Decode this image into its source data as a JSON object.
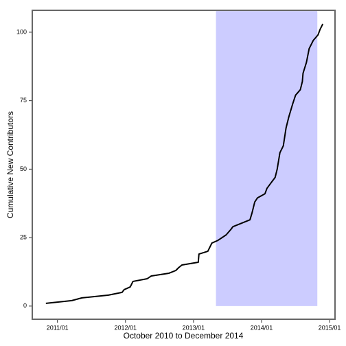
{
  "chart_data": {
    "type": "line",
    "xlabel": "October 2010 to December 2014",
    "ylabel": "Cumulative New Contributors",
    "x": [
      2010.83,
      2011.21,
      2011.36,
      2011.75,
      2011.95,
      2011.98,
      2012.07,
      2012.11,
      2012.32,
      2012.38,
      2012.64,
      2012.74,
      2012.78,
      2012.83,
      2013.07,
      2013.08,
      2013.21,
      2013.27,
      2013.36,
      2013.48,
      2013.55,
      2013.58,
      2013.83,
      2013.86,
      2013.9,
      2013.94,
      2014.05,
      2014.08,
      2014.14,
      2014.2,
      2014.23,
      2014.27,
      2014.32,
      2014.36,
      2014.4,
      2014.46,
      2014.5,
      2014.57,
      2014.6,
      2014.61,
      2014.66,
      2014.7,
      2014.76,
      2014.83,
      2014.86,
      2014.9
    ],
    "series": [
      {
        "color": "#000000",
        "values": [
          1,
          2,
          3,
          4,
          5,
          6,
          7,
          9,
          10,
          11,
          12,
          13,
          14,
          15,
          16,
          19,
          20,
          23,
          24,
          26,
          28,
          29,
          31.5,
          34,
          38,
          39.5,
          41,
          43,
          45,
          47,
          50,
          56,
          58.5,
          65,
          69,
          74,
          77,
          79,
          82,
          85,
          89,
          94,
          97,
          99,
          101,
          103
        ]
      }
    ],
    "shaded_region": {
      "xlim": [
        2013.33,
        2014.82
      ],
      "ylim": [
        0,
        108
      ],
      "color": "#ccccff"
    },
    "xlim": [
      2010.63,
      2015.08
    ],
    "xticks": [
      {
        "value": 2011,
        "label": "2011/01"
      },
      {
        "value": 2012,
        "label": "2012/01"
      },
      {
        "value": 2013,
        "label": "2013/01"
      },
      {
        "value": 2014,
        "label": "2014/01"
      },
      {
        "value": 2015,
        "label": "2015/01"
      }
    ],
    "ylim": [
      -4.8,
      108
    ],
    "yticks": [
      0,
      25,
      50,
      75,
      100
    ],
    "frame_color": "#666666"
  }
}
